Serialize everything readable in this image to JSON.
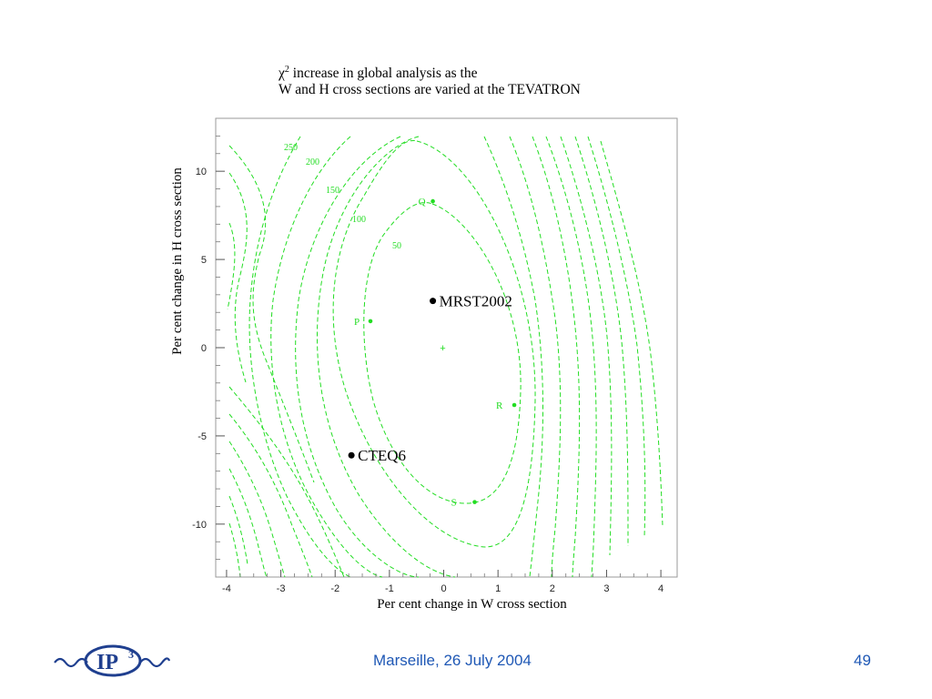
{
  "header": {
    "title_symbol": "χ",
    "title_superscript": "2",
    "title_line1": " increase in global analysis as the",
    "title_line2": "W and H cross sections are varied at the TEVATRON"
  },
  "footer": {
    "text": "Marseille, 26 July 2004",
    "page_number": "49",
    "logo_text": "IP",
    "logo_superscript": "3"
  },
  "colors": {
    "contour": "#22dd22",
    "logo_ring": "#1f3f8f",
    "footer_text": "#1f58b5"
  },
  "chart_data": {
    "type": "contour",
    "xlabel": "Per cent change in W cross section",
    "ylabel": "Per cent change in H cross section",
    "xlim": [
      -4.2,
      4.3
    ],
    "ylim": [
      -13,
      13
    ],
    "xticks": [
      -4,
      -3,
      -2,
      -1,
      0,
      1,
      2,
      3,
      4
    ],
    "yticks": [
      -10,
      -5,
      0,
      5,
      10
    ],
    "contour_labels": [
      "250",
      "200",
      "150",
      "100",
      "50"
    ],
    "special_points": [
      {
        "label": "MRST2002",
        "x": -0.2,
        "y": 2.65
      },
      {
        "label": "CTEQ6",
        "x": -1.7,
        "y": -6.1
      }
    ],
    "green_points": [
      {
        "label": "Q",
        "x": -0.2,
        "y": 8.3
      },
      {
        "label": "P",
        "x": -1.35,
        "y": 1.5
      },
      {
        "label": "R",
        "x": 1.3,
        "y": -3.25
      },
      {
        "label": "S",
        "x": 0.57,
        "y": -8.75
      }
    ],
    "origin_marker": {
      "x": 0,
      "y": 0,
      "symbol": "+"
    }
  }
}
